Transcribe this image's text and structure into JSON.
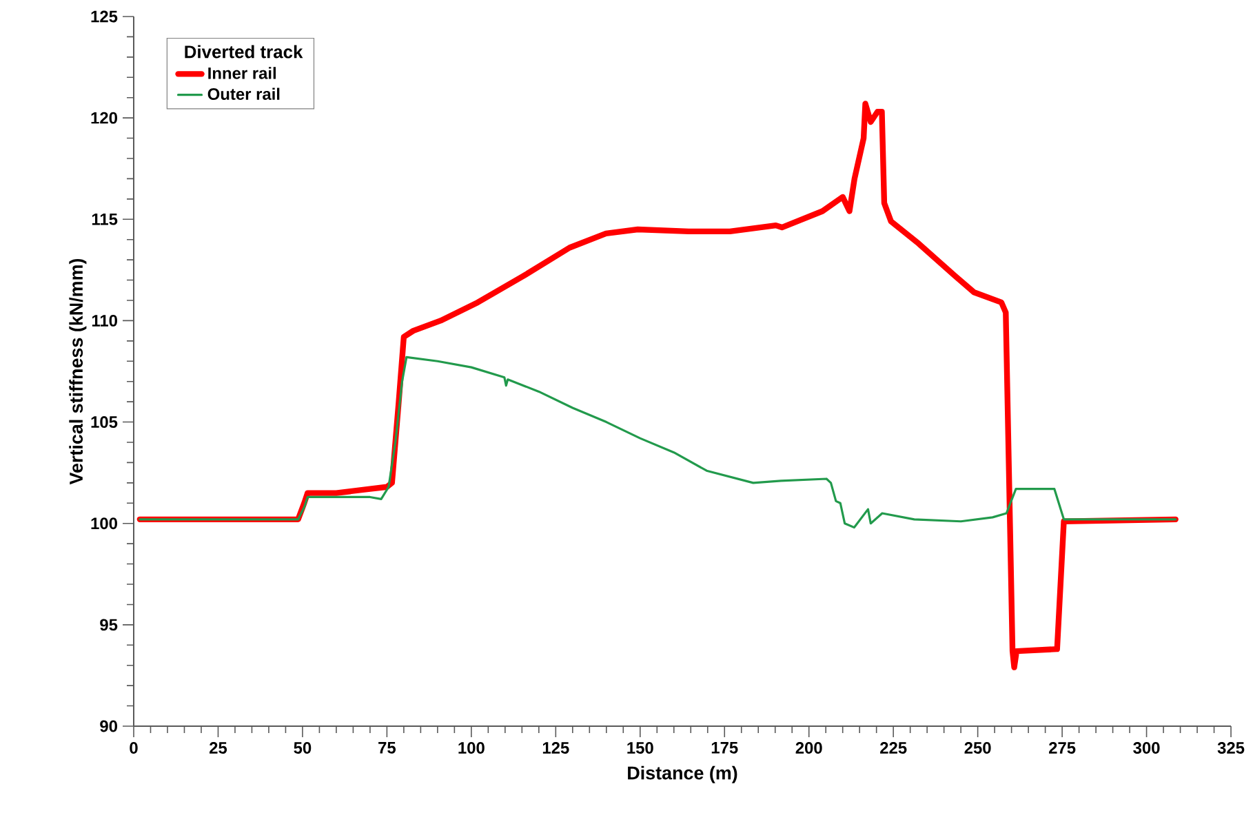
{
  "chart_data": {
    "type": "line",
    "xlabel": "Distance (m)",
    "ylabel": "Vertical stiffness (kN/mm)",
    "legend_title": "Diverted track",
    "legend": "top left",
    "xlim": [
      0,
      325
    ],
    "xticks": [
      0,
      25,
      50,
      75,
      100,
      125,
      150,
      175,
      200,
      225,
      250,
      275,
      300,
      325
    ],
    "ylim": [
      90,
      125
    ],
    "yticks": [
      90,
      95,
      100,
      105,
      110,
      115,
      120,
      125
    ],
    "series": [
      {
        "name": "Inner rail",
        "color": "#ff0000",
        "x": [
          1.8,
          48.7,
          50.5,
          51.5,
          60,
          70,
          75,
          76.5,
          78.5,
          80,
          82.8,
          90.9,
          101.9,
          115.4,
          129.1,
          139.9,
          149.3,
          164.4,
          176.6,
          190.2,
          192,
          204,
          210,
          212,
          213.5,
          216.2,
          216.7,
          218.3,
          220.3,
          221.6,
          222.3,
          224.3,
          232.5,
          243.3,
          248.9,
          257,
          258.3,
          260.3,
          260.8,
          261.5,
          273.5,
          275.5,
          308.6
        ],
        "values": [
          100.2,
          100.2,
          101.0,
          101.5,
          101.5,
          101.7,
          101.8,
          102.0,
          106.0,
          109.2,
          109.5,
          110.0,
          110.9,
          112.2,
          113.6,
          114.3,
          114.5,
          114.4,
          114.4,
          114.7,
          114.6,
          115.4,
          116.1,
          115.4,
          117.0,
          119.0,
          120.7,
          119.8,
          120.3,
          120.3,
          115.8,
          114.9,
          113.8,
          112.2,
          111.4,
          110.9,
          110.4,
          93.7,
          92.9,
          93.7,
          93.8,
          100.1,
          100.2
        ]
      },
      {
        "name": "Outer rail",
        "color": "#229a4c",
        "x": [
          1.8,
          48.7,
          50.5,
          51.5,
          60,
          70,
          73.3,
          75.5,
          77.5,
          79.5,
          80.8,
          90,
          100,
          109.8,
          110.3,
          110.8,
          120,
          130,
          140,
          150,
          160,
          169.7,
          183.5,
          191.7,
          205.2,
          206.5,
          208,
          209.3,
          210.6,
          213.4,
          217.5,
          218.3,
          221.7,
          231.2,
          245,
          254.4,
          258.5,
          261.3,
          272.7,
          275.5,
          308.6
        ],
        "values": [
          100.2,
          100.2,
          100.8,
          101.3,
          101.3,
          101.3,
          101.2,
          101.8,
          104.0,
          107.0,
          108.2,
          108.0,
          107.7,
          107.2,
          106.8,
          107.1,
          106.5,
          105.7,
          105.0,
          104.2,
          103.5,
          102.6,
          102.0,
          102.1,
          102.2,
          102.0,
          101.1,
          101.0,
          100.0,
          99.8,
          100.7,
          100.0,
          100.5,
          100.2,
          100.1,
          100.3,
          100.5,
          101.7,
          101.7,
          100.2,
          100.2
        ]
      }
    ]
  }
}
